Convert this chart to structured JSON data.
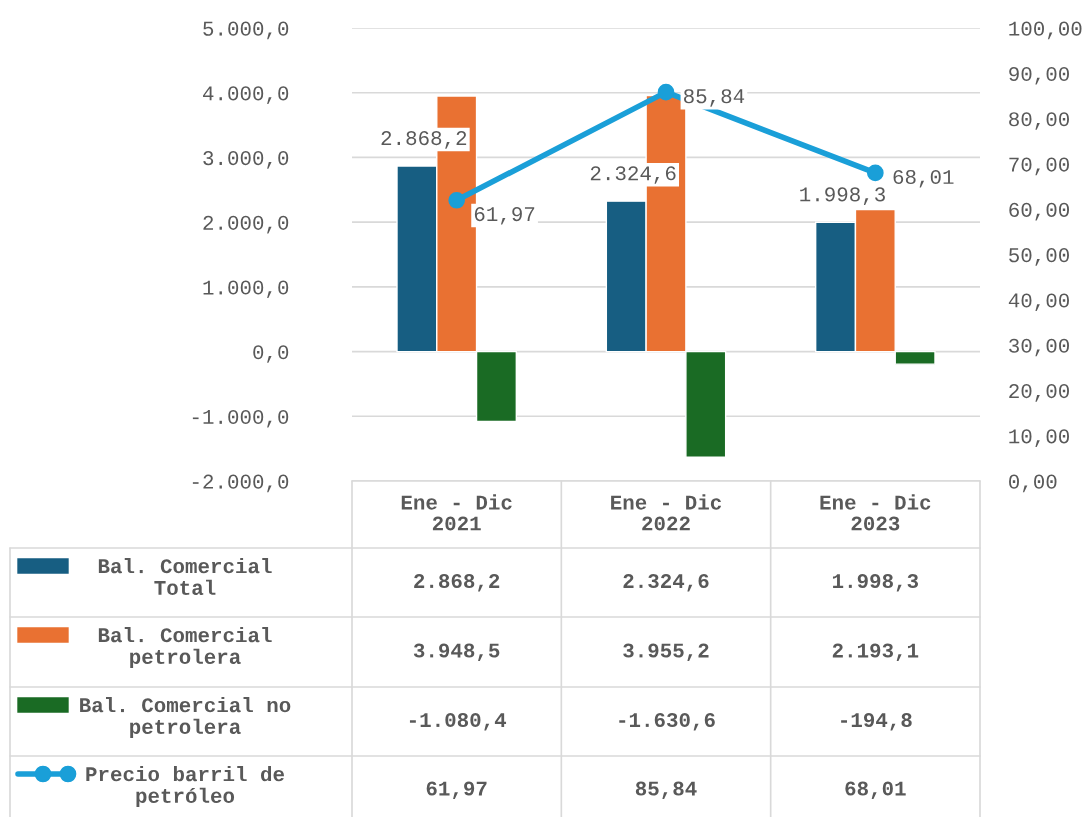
{
  "chart_data": {
    "type": "bar",
    "categories": [
      "Ene - Dic\n2021",
      "Ene - Dic\n2022",
      "Ene - Dic\n2023"
    ],
    "series": [
      {
        "name": "Bal. Comercial\nTotal",
        "color": "#175e82",
        "values": [
          2868.2,
          2324.6,
          1998.3
        ],
        "value_labels": [
          "2.868,2",
          "2.324,6",
          "1.998,3"
        ],
        "data_labels": true
      },
      {
        "name": "Bal. Comercial\npetrolera",
        "color": "#e97132",
        "values": [
          3948.5,
          3955.2,
          2193.1
        ],
        "value_labels": [
          "3.948,5",
          "3.955,2",
          "2.193,1"
        ]
      },
      {
        "name": "Bal. Comercial no\npetrolera",
        "color": "#1a6b24",
        "values": [
          -1080.4,
          -1630.6,
          -194.8
        ],
        "value_labels": [
          "-1.080,4",
          "-1.630,6",
          "-194,8"
        ]
      },
      {
        "name": "Precio barril de\npetróleo",
        "color": "#1a9fd8",
        "type": "line",
        "axis": "y2",
        "marker": "circle",
        "values": [
          61.97,
          85.84,
          68.01
        ],
        "value_labels": [
          "61,97",
          "85,84",
          "68,01"
        ],
        "data_labels": true
      }
    ],
    "ylim": [
      -2000,
      5000
    ],
    "yticks": [
      {
        "value": -2000,
        "label": "-2.000,0"
      },
      {
        "value": -1000,
        "label": "-1.000,0"
      },
      {
        "value": 0,
        "label": "0,0"
      },
      {
        "value": 1000,
        "label": "1.000,0"
      },
      {
        "value": 2000,
        "label": "2.000,0"
      },
      {
        "value": 3000,
        "label": "3.000,0"
      },
      {
        "value": 4000,
        "label": "4.000,0"
      },
      {
        "value": 5000,
        "label": "5.000,0"
      }
    ],
    "y2lim": [
      0,
      100
    ],
    "y2ticks": [
      {
        "value": 0,
        "label": "0,00"
      },
      {
        "value": 10,
        "label": "10,00"
      },
      {
        "value": 20,
        "label": "20,00"
      },
      {
        "value": 30,
        "label": "30,00"
      },
      {
        "value": 40,
        "label": "40,00"
      },
      {
        "value": 50,
        "label": "50,00"
      },
      {
        "value": 60,
        "label": "60,00"
      },
      {
        "value": 70,
        "label": "70,00"
      },
      {
        "value": 80,
        "label": "80,00"
      },
      {
        "value": 90,
        "label": "90,00"
      },
      {
        "value": 100,
        "label": "100,00"
      }
    ],
    "grid": "y",
    "legend": "bottom"
  }
}
